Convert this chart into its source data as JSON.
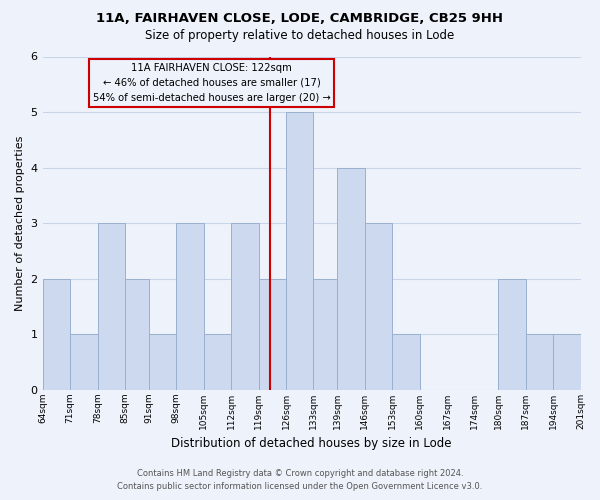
{
  "title": "11A, FAIRHAVEN CLOSE, LODE, CAMBRIDGE, CB25 9HH",
  "subtitle": "Size of property relative to detached houses in Lode",
  "xlabel": "Distribution of detached houses by size in Lode",
  "ylabel": "Number of detached properties",
  "bin_labels": [
    "64sqm",
    "71sqm",
    "78sqm",
    "85sqm",
    "91sqm",
    "98sqm",
    "105sqm",
    "112sqm",
    "119sqm",
    "126sqm",
    "133sqm",
    "139sqm",
    "146sqm",
    "153sqm",
    "160sqm",
    "167sqm",
    "174sqm",
    "180sqm",
    "187sqm",
    "194sqm",
    "201sqm"
  ],
  "bar_heights": [
    2,
    1,
    3,
    2,
    1,
    3,
    1,
    3,
    2,
    5,
    2,
    4,
    3,
    1,
    0,
    0,
    0,
    2,
    1,
    1
  ],
  "bar_color": "#ccd9ee",
  "bar_edgecolor": "#9ab0d0",
  "vline_x": 122,
  "vline_color": "#cc0000",
  "annotation_line1": "11A FAIRHAVEN CLOSE: 122sqm",
  "annotation_line2": "← 46% of detached houses are smaller (17)",
  "annotation_line3": "54% of semi-detached houses are larger (20) →",
  "annotation_box_edgecolor": "#cc0000",
  "ylim": [
    0,
    6
  ],
  "yticks": [
    0,
    1,
    2,
    3,
    4,
    5,
    6
  ],
  "grid_color": "#c8d4e8",
  "background_color": "#eef2fa",
  "footer_line1": "Contains HM Land Registry data © Crown copyright and database right 2024.",
  "footer_line2": "Contains public sector information licensed under the Open Government Licence v3.0."
}
